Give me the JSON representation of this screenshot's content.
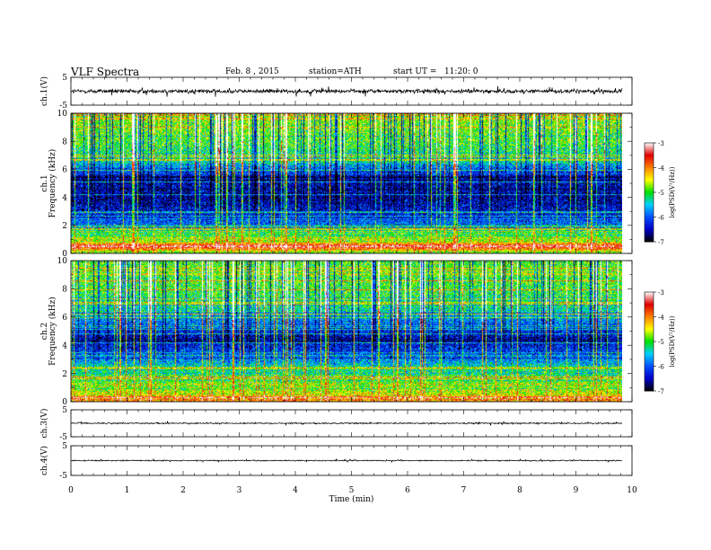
{
  "header": {
    "title": "VLF Spectra",
    "date": "Feb. 8 , 2015",
    "station": "station=ATH",
    "start_ut": "start UT =   11:20: 0"
  },
  "colorbar": {
    "label": "log(PSD(V²/Hz))",
    "ticks": [
      "-3",
      "-4",
      "-5",
      "-6",
      "-7"
    ],
    "range": [
      -7,
      -3
    ],
    "colors": [
      "#000000",
      "#0000c8",
      "#0050ff",
      "#00d0ff",
      "#00e000",
      "#ffff00",
      "#ff8000",
      "#e00000",
      "#ffffff"
    ]
  },
  "chart_data": [
    {
      "type": "line",
      "panel": "ch1-waveform",
      "ylabel": "ch.1(V)",
      "yticks": [
        "5",
        "-5"
      ],
      "ylim": [
        -5,
        5
      ],
      "xlim": [
        0,
        9.83
      ],
      "mean_level": 0,
      "noise_amplitude": 1.2,
      "color": "#000000"
    },
    {
      "type": "heatmap",
      "panel": "ch1-spectrogram",
      "ylabel_line1": "ch.1",
      "ylabel_line2": "Frequency  (kHz)",
      "yticks": [
        "0",
        "2",
        "4",
        "6",
        "8",
        "10"
      ],
      "ylim": [
        0,
        10
      ],
      "xlim": [
        0,
        9.83
      ],
      "zlim": [
        -7,
        -3
      ],
      "background_profile_kHz": [
        {
          "f": 0.1,
          "v": -4.8
        },
        {
          "f": 0.5,
          "v": -3.2
        },
        {
          "f": 0.8,
          "v": -4.5
        },
        {
          "f": 1.5,
          "v": -5.3
        },
        {
          "f": 2.5,
          "v": -6.2
        },
        {
          "f": 4.0,
          "v": -6.6
        },
        {
          "f": 5.5,
          "v": -6.4
        },
        {
          "f": 6.5,
          "v": -5.4
        },
        {
          "f": 8.0,
          "v": -4.9
        },
        {
          "f": 10.0,
          "v": -4.7
        }
      ],
      "spheric_level": -4.3
    },
    {
      "type": "heatmap",
      "panel": "ch2-spectrogram",
      "ylabel_line1": "ch.2",
      "ylabel_line2": "Frequency  (kHz)",
      "yticks": [
        "0",
        "2",
        "4",
        "6",
        "8",
        "10"
      ],
      "ylim": [
        0,
        10
      ],
      "xlim": [
        0,
        9.83
      ],
      "zlim": [
        -7,
        -3
      ],
      "background_profile_kHz": [
        {
          "f": 0.1,
          "v": -4.2
        },
        {
          "f": 0.6,
          "v": -4.6
        },
        {
          "f": 1.5,
          "v": -4.9
        },
        {
          "f": 2.5,
          "v": -5.4
        },
        {
          "f": 3.5,
          "v": -6.1
        },
        {
          "f": 4.5,
          "v": -6.5
        },
        {
          "f": 5.5,
          "v": -5.9
        },
        {
          "f": 7.0,
          "v": -5.1
        },
        {
          "f": 9.0,
          "v": -4.9
        },
        {
          "f": 10.0,
          "v": -4.8
        }
      ],
      "spheric_level": -4.2
    },
    {
      "type": "line",
      "panel": "ch3-waveform",
      "ylabel": "ch.3(V)",
      "yticks": [
        "5",
        "-5"
      ],
      "ylim": [
        -5,
        5
      ],
      "xlim": [
        0,
        9.83
      ],
      "mean_level": 0,
      "noise_amplitude": 0.4,
      "color": "#000000"
    },
    {
      "type": "line",
      "panel": "ch4-waveform",
      "ylabel": "ch.4(V)",
      "yticks": [
        "5",
        "-5"
      ],
      "ylim": [
        -5,
        5
      ],
      "xlim": [
        0,
        9.83
      ],
      "mean_level": 0,
      "noise_amplitude": 0.3,
      "color": "#000000",
      "xlabel": "Time  (min)",
      "xticks": [
        "0",
        "1",
        "2",
        "3",
        "4",
        "5",
        "6",
        "7",
        "8",
        "9",
        "10"
      ],
      "x_axis_range": [
        0,
        10
      ]
    }
  ]
}
